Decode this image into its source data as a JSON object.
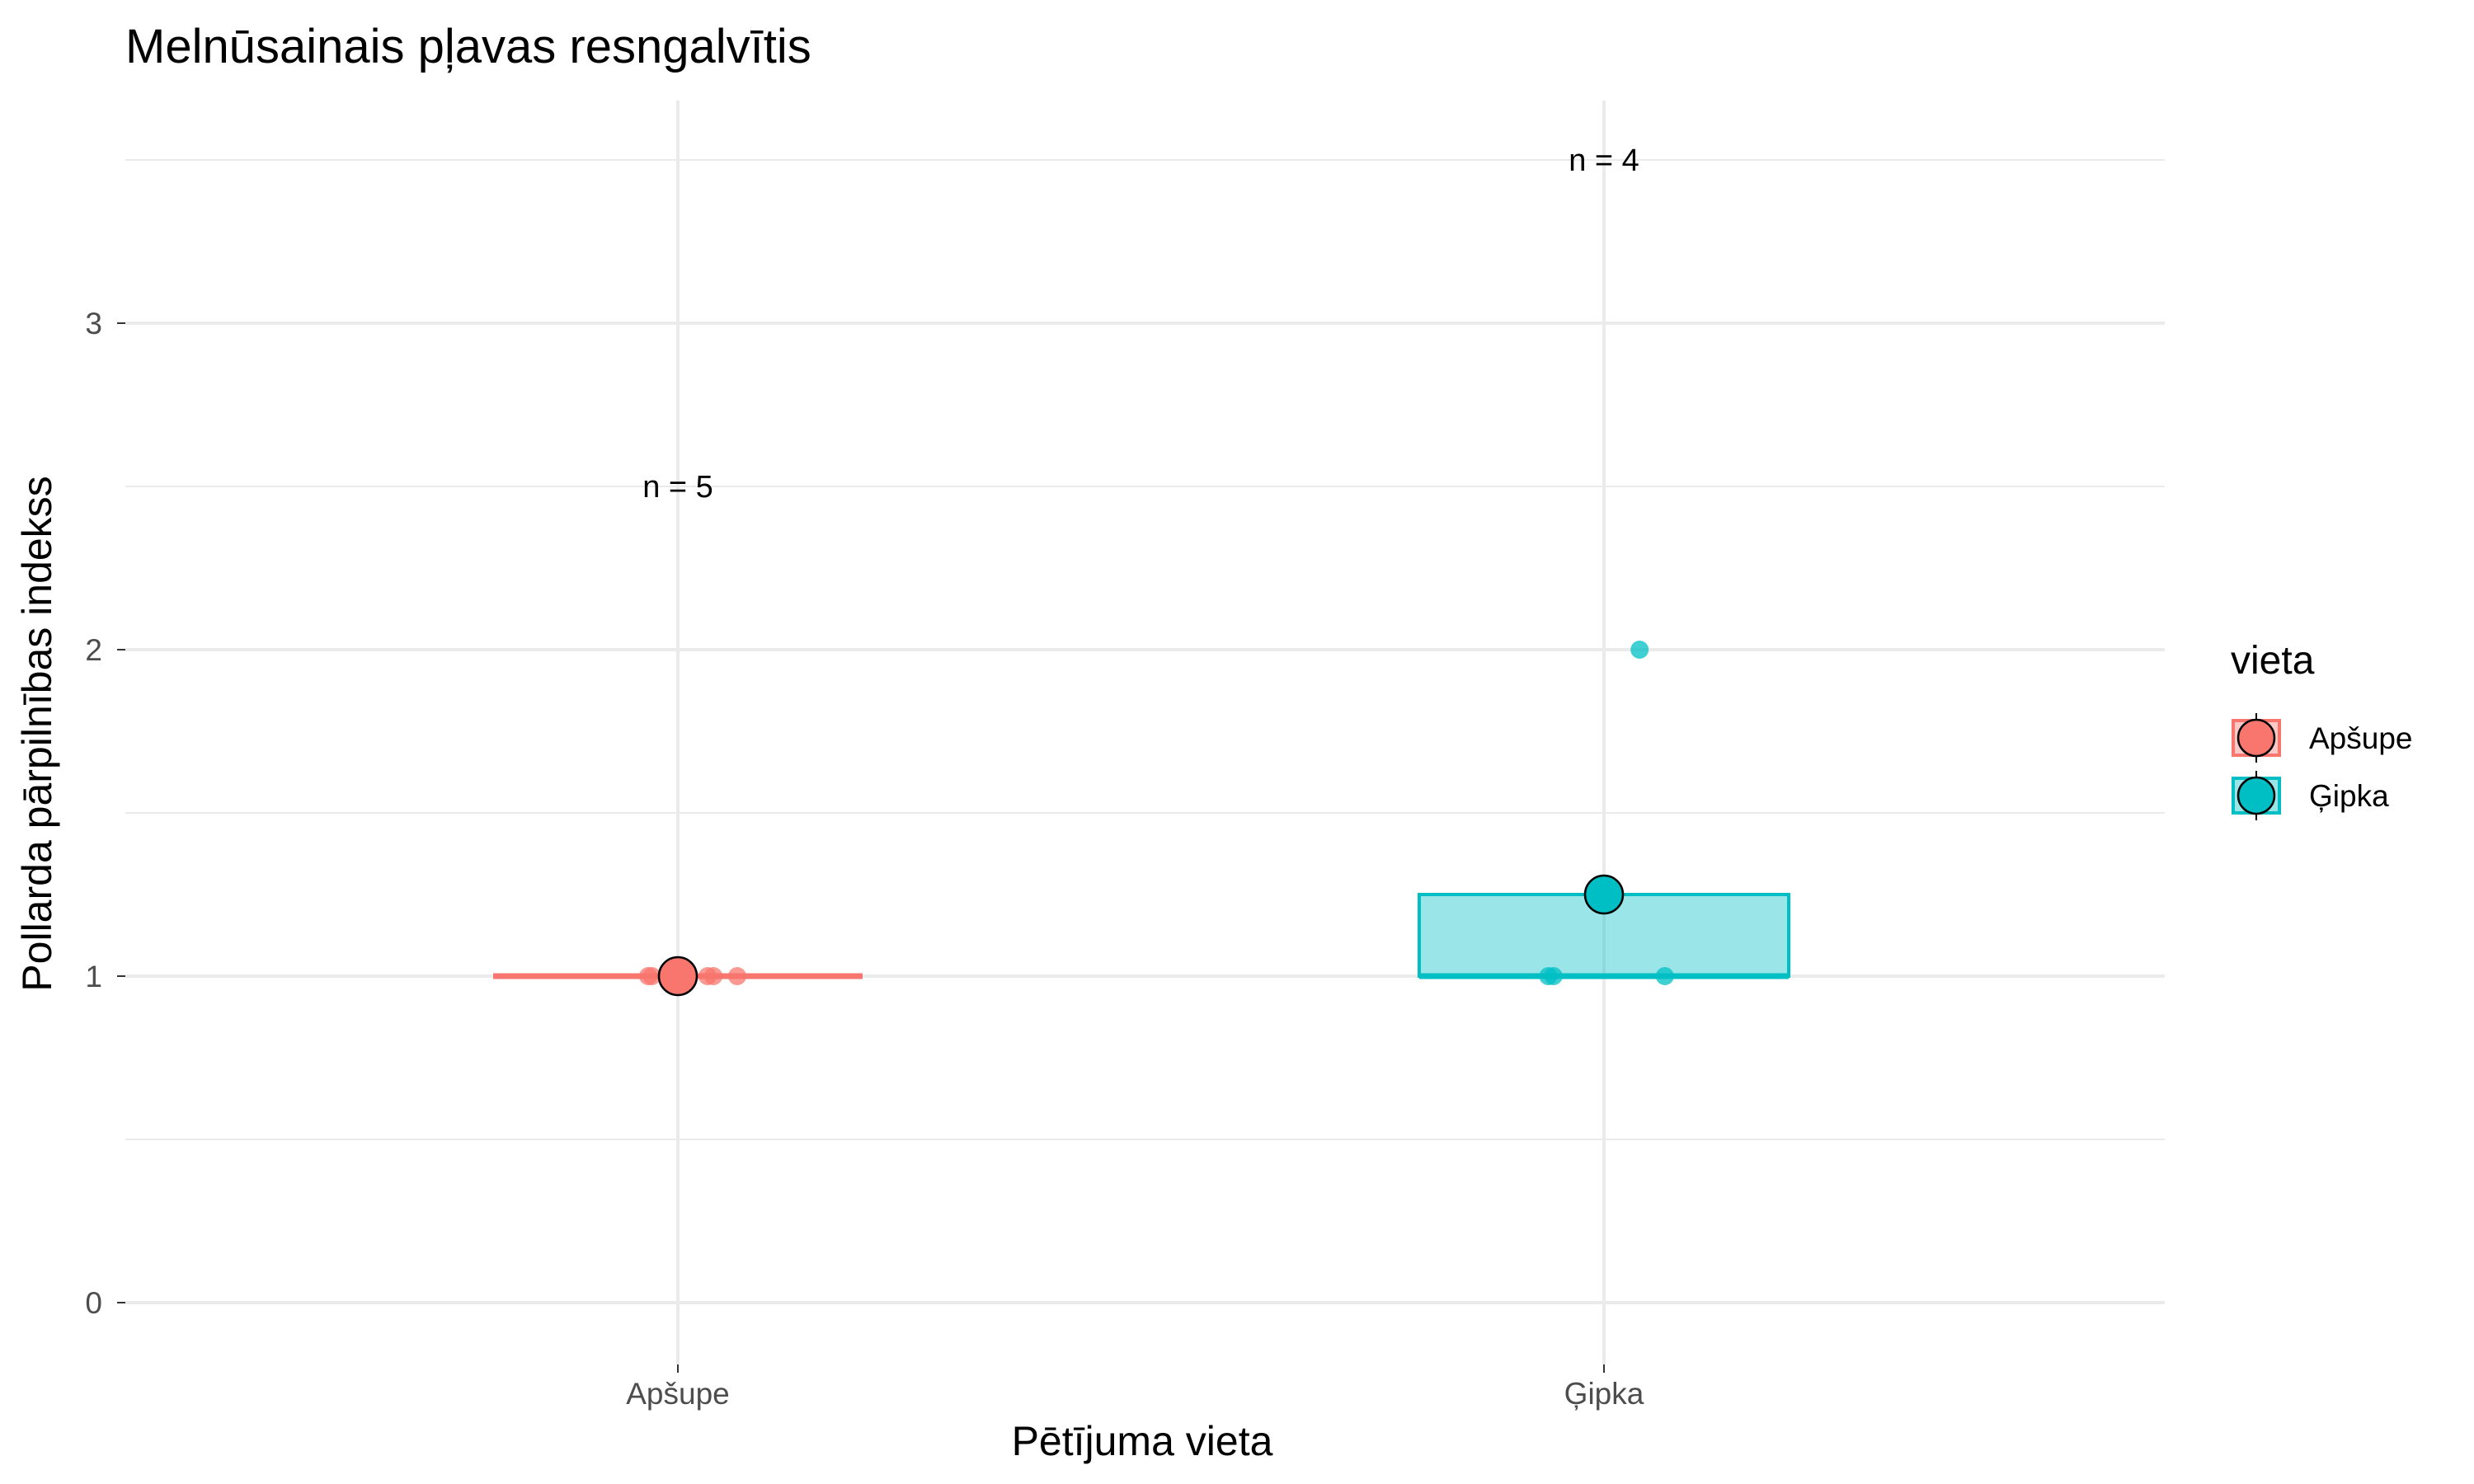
{
  "chart_data": {
    "type": "box",
    "title": "Melnūsainais pļavas resngalvītis",
    "xlabel": "Pētījuma vieta",
    "ylabel": "Pollarda pārpilnības indekss",
    "categories": [
      "Apšupe",
      "Ģipka"
    ],
    "ylim": [
      -0.13,
      3.68
    ],
    "yticks": [
      0,
      1,
      2,
      3
    ],
    "ytick_labels": [
      "0",
      "1",
      "2",
      "3"
    ],
    "grid": true,
    "legend": {
      "title": "vieta",
      "position": "right",
      "entries": [
        "Apšupe",
        "Ģipka"
      ]
    },
    "series": [
      {
        "category": "Apšupe",
        "color": "#F8766D",
        "box": {
          "q1": 1.0,
          "median": 1.0,
          "q3": 1.0
        },
        "mean": 1.0,
        "points": [
          {
            "x": -0.04,
            "y": 1.0
          },
          {
            "x": -0.035,
            "y": 1.0
          },
          {
            "x": 0.04,
            "y": 1.0
          },
          {
            "x": 0.048,
            "y": 1.0
          },
          {
            "x": 0.08,
            "y": 1.0
          }
        ],
        "annotation": {
          "text": "n = 5",
          "y": 2.5
        }
      },
      {
        "category": "Ģipka",
        "color": "#00BFC4",
        "box": {
          "q1": 1.0,
          "median": 1.0,
          "q3": 1.25
        },
        "mean": 1.25,
        "points": [
          {
            "x": 0.048,
            "y": 2.0
          },
          {
            "x": -0.075,
            "y": 1.0
          },
          {
            "x": -0.068,
            "y": 1.0
          },
          {
            "x": 0.082,
            "y": 1.0
          }
        ],
        "annotation": {
          "text": "n = 4",
          "y": 3.5
        }
      }
    ]
  }
}
